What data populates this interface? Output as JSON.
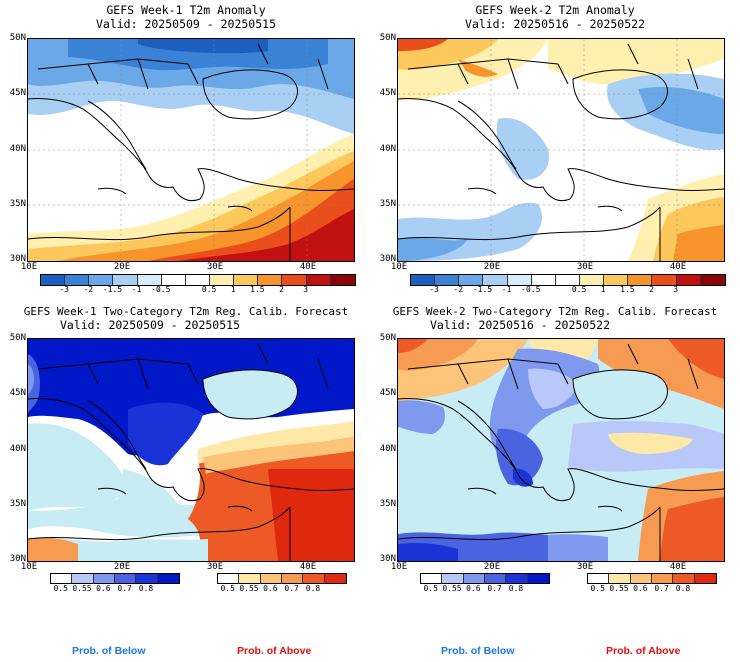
{
  "colors": {
    "anom_scale": [
      "#1b5fbf",
      "#3a82d6",
      "#6aa8e8",
      "#a9cff5",
      "#d9ecfb",
      "#ffffff",
      "#ffffff",
      "#fff0b0",
      "#fcc85c",
      "#f7942b",
      "#ea4e1a",
      "#c01010",
      "#8a0606"
    ],
    "prob_below": [
      "#ffffff",
      "#b8c8f8",
      "#7f99ee",
      "#4a63e0",
      "#1a33d6",
      "#0018c8"
    ],
    "prob_above": [
      "#ffffff",
      "#ffe8a8",
      "#fcc478",
      "#f79a52",
      "#ee5a26",
      "#e0280e"
    ],
    "sea_prob": "#c8ecf4"
  },
  "panels": [
    {
      "id": "week1-anom",
      "title": "GEFS Week-1 T2m Anomaly",
      "valid": "Valid: 20250509 - 20250515",
      "y_ticks": [
        "50N",
        "45N",
        "40N",
        "35N",
        "30N"
      ],
      "x_ticks": [
        "10E",
        "20E",
        "30E",
        "40E"
      ],
      "colorbar_ticks": [
        "-3",
        "-2",
        "-1.5",
        "-1",
        "-0.5",
        "0.5",
        "1",
        "1.5",
        "2",
        "3"
      ]
    },
    {
      "id": "week2-anom",
      "title": "GEFS Week-2 T2m Anomaly",
      "valid": "Valid: 20250516 - 20250522",
      "y_ticks": [
        "50N",
        "45N",
        "40N",
        "35N",
        "30N"
      ],
      "x_ticks": [
        "10E",
        "20E",
        "30E",
        "40E"
      ],
      "colorbar_ticks": [
        "-3",
        "-2",
        "-1.5",
        "-1",
        "-0.5",
        "0.5",
        "1",
        "1.5",
        "2",
        "3"
      ]
    },
    {
      "id": "week1-prob",
      "title": "GEFS Week-1 Two-Category T2m Reg. Calib. Forecast",
      "valid": "Valid: 20250509 - 20250515",
      "y_ticks": [
        "50N",
        "45N",
        "40N",
        "35N",
        "30N"
      ],
      "x_ticks": [
        "10E",
        "20E",
        "30E",
        "40E"
      ],
      "below_ticks": [
        "0.5",
        "0.55",
        "0.6",
        "0.7",
        "0.8"
      ],
      "above_ticks": [
        "0.5",
        "0.55",
        "0.6",
        "0.7",
        "0.8"
      ]
    },
    {
      "id": "week2-prob",
      "title": "GEFS Week-2 Two-Category T2m Reg. Calib. Forecast",
      "valid": "Valid: 20250516 - 20250522",
      "y_ticks": [
        "50N",
        "45N",
        "40N",
        "35N",
        "30N"
      ],
      "x_ticks": [
        "10E",
        "20E",
        "30E",
        "40E"
      ],
      "below_ticks": [
        "0.5",
        "0.55",
        "0.6",
        "0.7",
        "0.8"
      ],
      "above_ticks": [
        "0.5",
        "0.55",
        "0.6",
        "0.7",
        "0.8"
      ]
    }
  ],
  "footer": {
    "below_label": "Prob. of Below",
    "above_label": "Prob. of Above",
    "below_color": "#1e78e6",
    "above_color": "#e01010"
  }
}
